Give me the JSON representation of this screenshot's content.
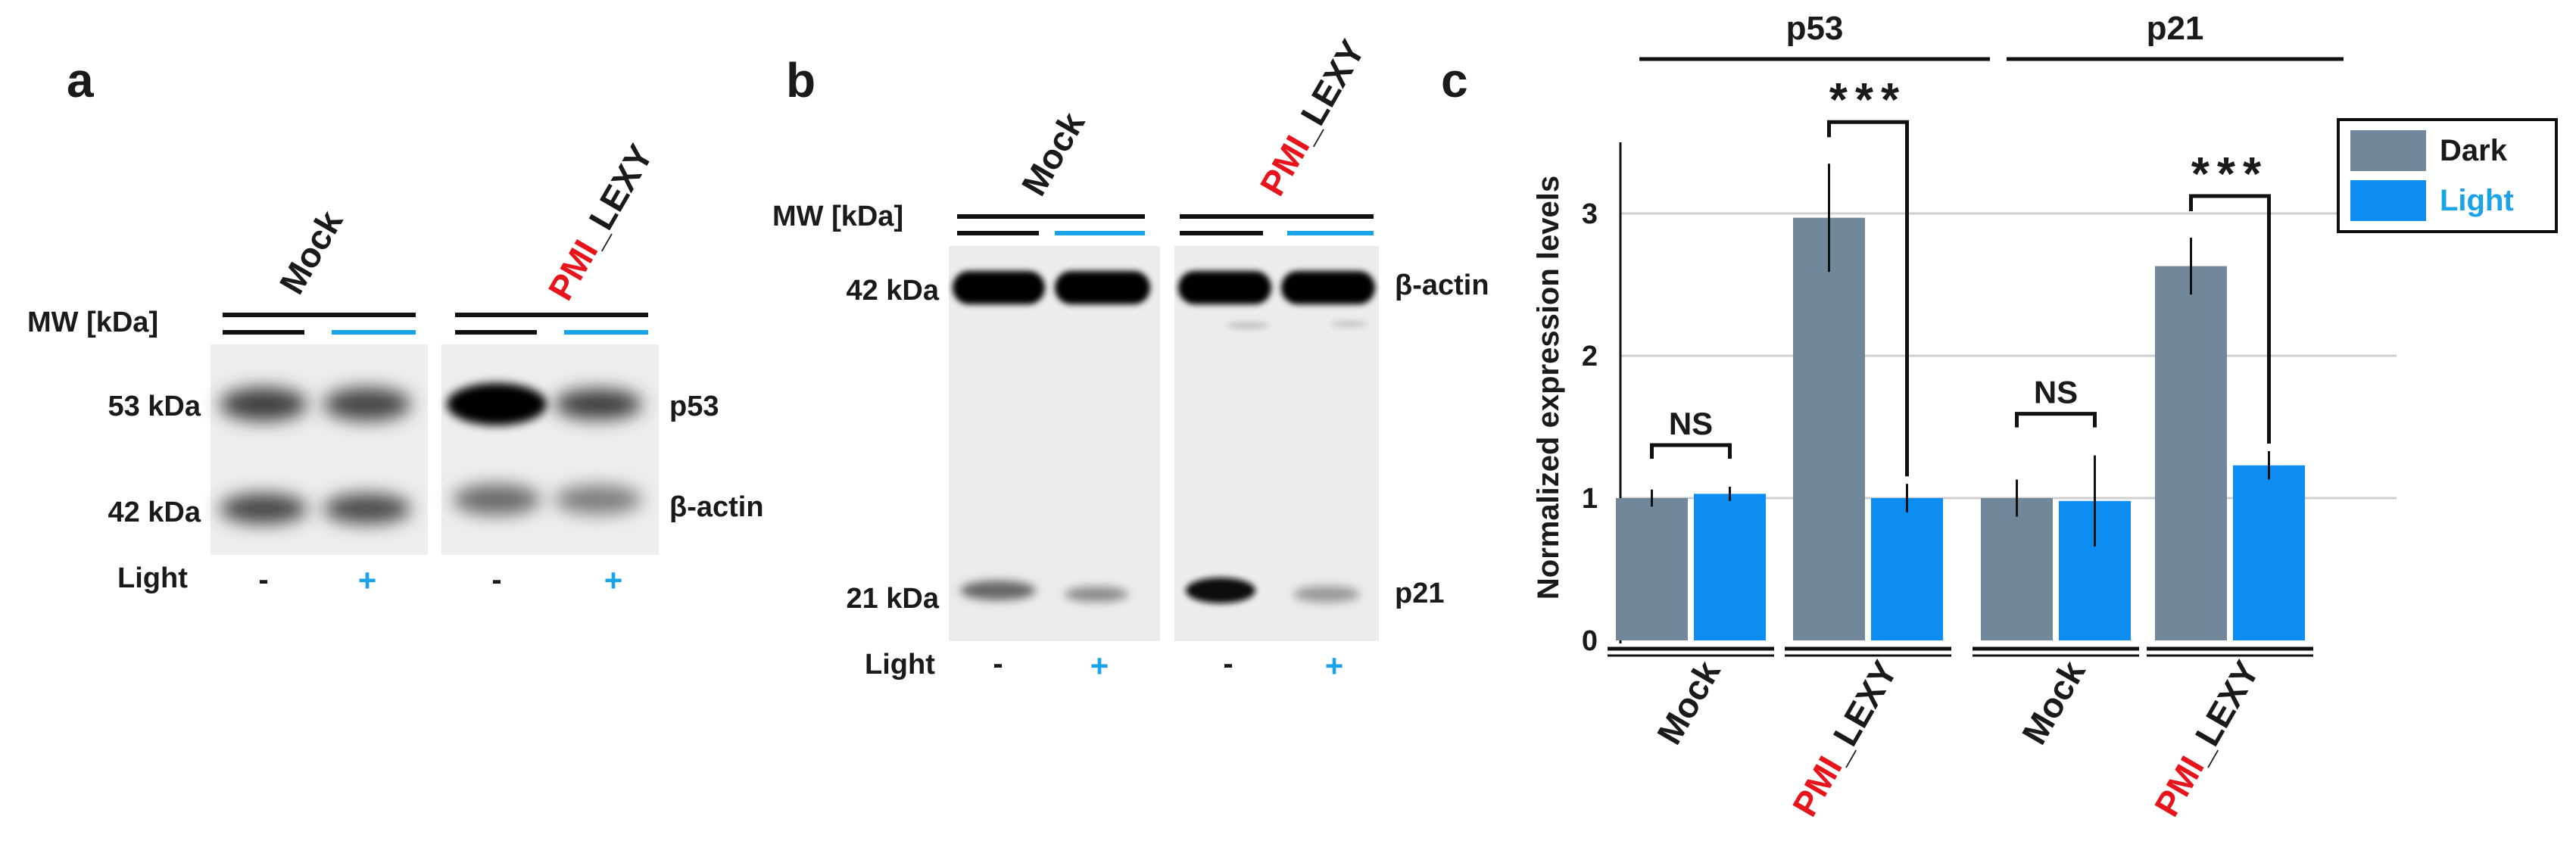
{
  "colors": {
    "dark": "#72879a",
    "light": "#0d8df2",
    "red": "#e8141b",
    "cyan": "#1aa3e8",
    "black": "#111111"
  },
  "panel_a": {
    "letter": "a",
    "mw_label": "MW [kDa]",
    "sample_mock": "Mock",
    "sample_pmi_red": "PMI",
    "sample_pmi_rest": "_LEXY",
    "mw_53": "53 kDa",
    "mw_42": "42 kDa",
    "band_p53": "p53",
    "band_actin": "β-actin",
    "light_label": "Light",
    "minus": "-",
    "plus": "+"
  },
  "panel_b": {
    "letter": "b",
    "mw_label": "MW [kDa]",
    "sample_mock": "Mock",
    "sample_pmi_red": "PMI",
    "sample_pmi_rest": "_LEXY",
    "mw_42": "42 kDa",
    "mw_21": "21 kDa",
    "band_actin": "β-actin",
    "band_p21": "p21",
    "light_label": "Light",
    "minus": "-",
    "plus": "+"
  },
  "panel_c": {
    "letter": "c",
    "significance": {
      "ns": "NS",
      "stars": "***"
    }
  },
  "chart_data": {
    "type": "bar",
    "ylabel": "Normalized expression levels",
    "ylim": [
      0,
      3.5
    ],
    "yticks": [
      "0",
      "1",
      "2",
      "3"
    ],
    "grid": true,
    "legend_position": "top-right",
    "groups": [
      {
        "name": "p53",
        "categories": [
          "Mock",
          "PMI_LEXY"
        ]
      },
      {
        "name": "p21",
        "categories": [
          "Mock",
          "PMI_LEXY"
        ]
      }
    ],
    "category_labels": [
      {
        "red": "",
        "rest": "Mock"
      },
      {
        "red": "PMI",
        "rest": "_LEXY"
      },
      {
        "red": "",
        "rest": "Mock"
      },
      {
        "red": "PMI",
        "rest": "_LEXY"
      }
    ],
    "series": [
      {
        "name": "Dark",
        "values": [
          1.0,
          2.97,
          1.0,
          2.63
        ],
        "errors": [
          0.06,
          0.38,
          0.13,
          0.2
        ]
      },
      {
        "name": "Light",
        "values": [
          1.03,
          1.0,
          0.98,
          1.23
        ],
        "errors": [
          0.05,
          0.1,
          0.32,
          0.1
        ]
      }
    ],
    "annotations": [
      {
        "group": 0,
        "category": 0,
        "text": "NS"
      },
      {
        "group": 0,
        "category": 1,
        "text": "***"
      },
      {
        "group": 1,
        "category": 0,
        "text": "NS"
      },
      {
        "group": 1,
        "category": 1,
        "text": "***"
      }
    ]
  }
}
